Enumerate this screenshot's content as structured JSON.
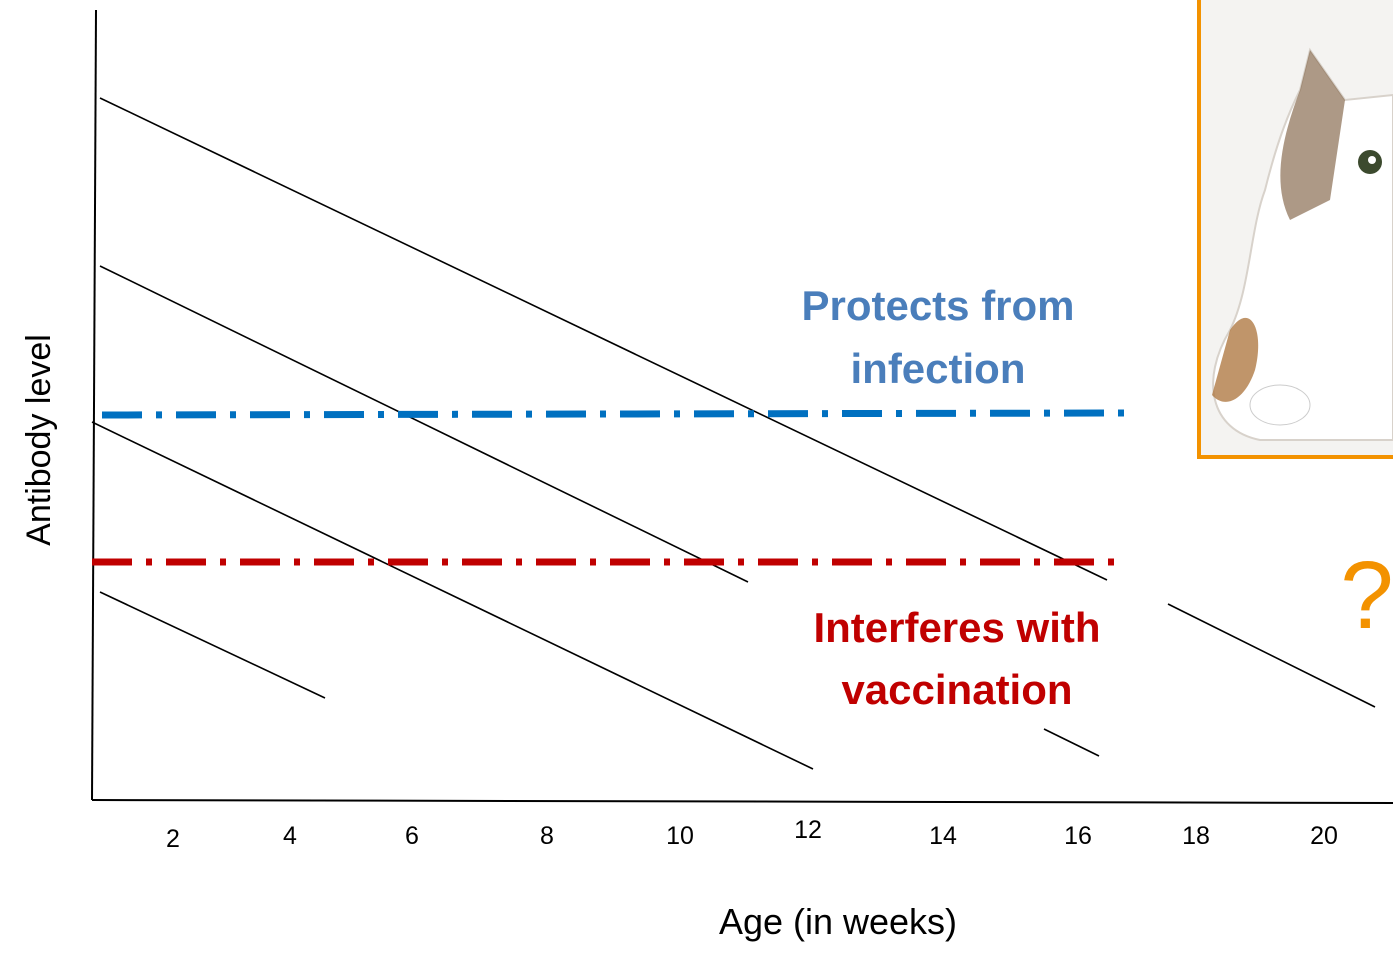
{
  "y_label": "Antibody level",
  "x_label": "Age (in weeks)",
  "x_ticks": [
    "2",
    "4",
    "6",
    "8",
    "10",
    "12",
    "14",
    "16",
    "18",
    "20"
  ],
  "annotations": {
    "protects": [
      "Protects from",
      "infection"
    ],
    "interferes": [
      "Interferes with",
      "vaccination"
    ]
  },
  "question": "?"
}
